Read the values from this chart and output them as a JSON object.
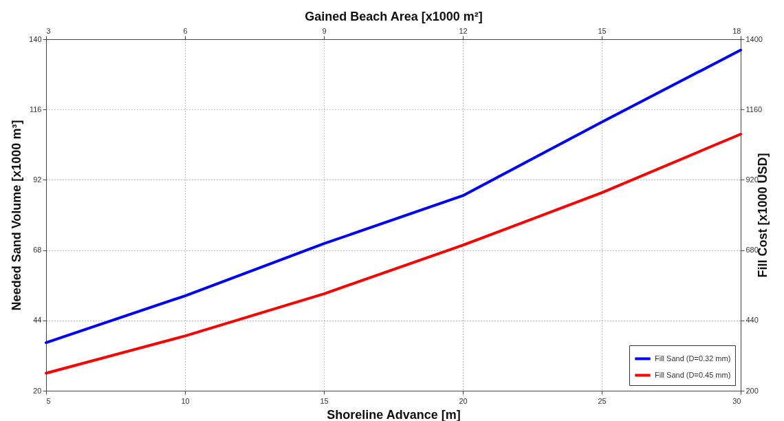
{
  "chart_data": {
    "type": "line",
    "xlabel": "Shoreline Advance [m]",
    "ylabel": "Needed Sand Volume [x1000 m³]",
    "x2label": "Gained Beach Area [x1000 m²]",
    "y2label": "Fill Cost [x1000 USD]",
    "x": [
      5,
      10,
      15,
      20,
      25,
      30
    ],
    "series": [
      {
        "name": "Fill Sand (D=0.32 mm)",
        "color": "#0000ff",
        "values": [
          36.4,
          52.4,
          70.2,
          86.6,
          111.7,
          136.3
        ]
      },
      {
        "name": "Fill Sand (D=0.45 mm)",
        "color": "#ff0000",
        "values": [
          26.0,
          38.7,
          53.1,
          69.7,
          87.6,
          107.6
        ]
      }
    ],
    "xlim": [
      5,
      30
    ],
    "xticks": [
      5,
      10,
      15,
      20,
      25,
      30
    ],
    "ylim": [
      20,
      140
    ],
    "yticks": [
      20,
      44,
      68,
      92,
      116,
      140
    ],
    "x2lim": [
      3,
      18
    ],
    "x2ticks": [
      3,
      6,
      9,
      12,
      15,
      18
    ],
    "y2lim": [
      200,
      1400
    ],
    "y2ticks": [
      200,
      440,
      680,
      920,
      1160,
      1400
    ],
    "grid": true,
    "legend": "bottom right",
    "line_style": "solid"
  }
}
